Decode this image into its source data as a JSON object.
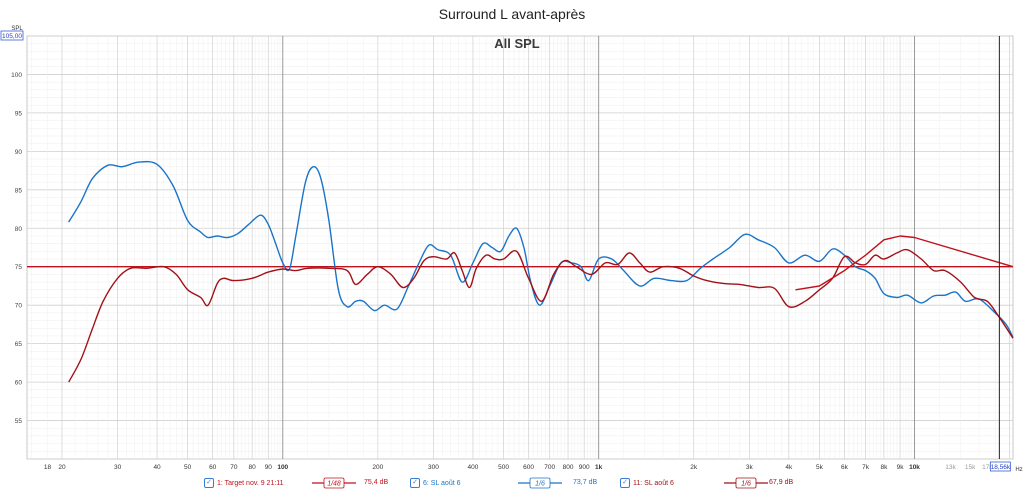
{
  "chart_data": {
    "type": "line",
    "title": "Surround L avant-après",
    "subtitle": "All SPL",
    "ylabel": "SPL",
    "xlabel": "Hz",
    "x_scale": "log",
    "xlim": [
      15.5,
      20500
    ],
    "ylim": [
      50,
      105
    ],
    "y_ticks": [
      55,
      60,
      65,
      70,
      75,
      80,
      85,
      90,
      95,
      100
    ],
    "y_top_label": "105,00",
    "x_ticks": [
      {
        "v": 18,
        "label": "18"
      },
      {
        "v": 20,
        "label": "20"
      },
      {
        "v": 30,
        "label": "30"
      },
      {
        "v": 40,
        "label": "40"
      },
      {
        "v": 50,
        "label": "50"
      },
      {
        "v": 60,
        "label": "60"
      },
      {
        "v": 70,
        "label": "70"
      },
      {
        "v": 80,
        "label": "80"
      },
      {
        "v": 90,
        "label": "90"
      },
      {
        "v": 100,
        "label": "100"
      },
      {
        "v": 200,
        "label": "200"
      },
      {
        "v": 300,
        "label": "300"
      },
      {
        "v": 400,
        "label": "400"
      },
      {
        "v": 500,
        "label": "500"
      },
      {
        "v": 600,
        "label": "600"
      },
      {
        "v": 700,
        "label": "700"
      },
      {
        "v": 800,
        "label": "800"
      },
      {
        "v": 900,
        "label": "900"
      },
      {
        "v": 1000,
        "label": "1k"
      },
      {
        "v": 2000,
        "label": "2k"
      },
      {
        "v": 3000,
        "label": "3k"
      },
      {
        "v": 4000,
        "label": "4k"
      },
      {
        "v": 5000,
        "label": "5k"
      },
      {
        "v": 6000,
        "label": "6k"
      },
      {
        "v": 7000,
        "label": "7k"
      },
      {
        "v": 8000,
        "label": "8k"
      },
      {
        "v": 9000,
        "label": "9k"
      },
      {
        "v": 10000,
        "label": "10k"
      },
      {
        "v": 13000,
        "label": "13k"
      },
      {
        "v": 15000,
        "label": "15k"
      },
      {
        "v": 17000,
        "label": "17k"
      }
    ],
    "cursor_label": "18,56k",
    "cursor_x": 18560,
    "grid": true,
    "legend_position": "bottom",
    "series": [
      {
        "name": "1: Target nov. 9 21:11",
        "color": "#c0121c",
        "smoothing": "1/48",
        "value_label": "75,4 dB",
        "points": [
          [
            15.5,
            75
          ],
          [
            10000,
            75
          ],
          [
            20500,
            75
          ]
        ]
      },
      {
        "name": "6: SL août 6",
        "color": "#1a74c9",
        "smoothing": "1/6",
        "value_label": "73,7 dB",
        "points": [
          [
            21,
            80.8
          ],
          [
            23,
            83.5
          ],
          [
            25,
            86.5
          ],
          [
            28,
            88.2
          ],
          [
            31,
            88
          ],
          [
            35,
            88.6
          ],
          [
            40,
            88.3
          ],
          [
            45,
            85.5
          ],
          [
            50,
            81
          ],
          [
            55,
            79.5
          ],
          [
            58,
            78.8
          ],
          [
            62,
            79
          ],
          [
            67,
            78.8
          ],
          [
            72,
            79.3
          ],
          [
            78,
            80.5
          ],
          [
            85,
            81.7
          ],
          [
            90,
            80.5
          ],
          [
            95,
            78
          ],
          [
            100,
            75.5
          ],
          [
            105,
            74.7
          ],
          [
            110,
            79
          ],
          [
            118,
            86
          ],
          [
            125,
            88
          ],
          [
            132,
            86.5
          ],
          [
            140,
            81
          ],
          [
            150,
            72
          ],
          [
            160,
            69.8
          ],
          [
            170,
            70.5
          ],
          [
            180,
            70.5
          ],
          [
            195,
            69.3
          ],
          [
            210,
            70
          ],
          [
            230,
            69.5
          ],
          [
            250,
            72.5
          ],
          [
            270,
            75.5
          ],
          [
            290,
            77.8
          ],
          [
            310,
            77.2
          ],
          [
            340,
            76.5
          ],
          [
            370,
            73
          ],
          [
            400,
            75.5
          ],
          [
            430,
            78
          ],
          [
            460,
            77.5
          ],
          [
            490,
            77
          ],
          [
            520,
            79
          ],
          [
            550,
            80
          ],
          [
            580,
            77.5
          ],
          [
            610,
            73
          ],
          [
            650,
            70
          ],
          [
            700,
            72.5
          ],
          [
            760,
            75.5
          ],
          [
            820,
            75.5
          ],
          [
            880,
            75
          ],
          [
            930,
            73.2
          ],
          [
            1000,
            76
          ],
          [
            1100,
            76
          ],
          [
            1200,
            74.5
          ],
          [
            1350,
            72.5
          ],
          [
            1500,
            73.5
          ],
          [
            1700,
            73.2
          ],
          [
            1900,
            73.2
          ],
          [
            2100,
            74.8
          ],
          [
            2300,
            76
          ],
          [
            2600,
            77.5
          ],
          [
            2900,
            79.2
          ],
          [
            3200,
            78.5
          ],
          [
            3600,
            77.5
          ],
          [
            4000,
            75.5
          ],
          [
            4500,
            76.5
          ],
          [
            5000,
            75.7
          ],
          [
            5500,
            77.3
          ],
          [
            6000,
            76.5
          ],
          [
            6500,
            75
          ],
          [
            7000,
            74.5
          ],
          [
            7500,
            73.5
          ],
          [
            8000,
            71.5
          ],
          [
            8800,
            71
          ],
          [
            9500,
            71.3
          ],
          [
            10500,
            70.3
          ],
          [
            11500,
            71.2
          ],
          [
            12500,
            71.3
          ],
          [
            13500,
            71.7
          ],
          [
            14500,
            70.5
          ],
          [
            16000,
            70.8
          ],
          [
            18000,
            69
          ],
          [
            19500,
            67.5
          ],
          [
            20500,
            65.8
          ]
        ]
      },
      {
        "name": "11: SL août 6",
        "color": "#a11218",
        "smoothing": "1/6",
        "value_label": "67,9 dB",
        "points": [
          [
            21,
            60
          ],
          [
            23,
            63
          ],
          [
            25,
            67
          ],
          [
            27,
            70.5
          ],
          [
            30,
            73.5
          ],
          [
            33,
            74.8
          ],
          [
            37,
            74.8
          ],
          [
            42,
            75
          ],
          [
            46,
            74
          ],
          [
            50,
            72
          ],
          [
            55,
            71
          ],
          [
            58,
            70
          ],
          [
            62,
            72.8
          ],
          [
            65,
            73.5
          ],
          [
            70,
            73.2
          ],
          [
            80,
            73.5
          ],
          [
            90,
            74.3
          ],
          [
            100,
            74.7
          ],
          [
            110,
            74.5
          ],
          [
            120,
            74.8
          ],
          [
            140,
            74.8
          ],
          [
            160,
            74.5
          ],
          [
            170,
            72.7
          ],
          [
            185,
            74
          ],
          [
            200,
            75
          ],
          [
            220,
            74
          ],
          [
            240,
            72.3
          ],
          [
            260,
            73.5
          ],
          [
            280,
            75.8
          ],
          [
            300,
            76.3
          ],
          [
            330,
            76
          ],
          [
            350,
            76.8
          ],
          [
            370,
            74.5
          ],
          [
            390,
            72.3
          ],
          [
            410,
            74.8
          ],
          [
            440,
            76.5
          ],
          [
            470,
            76
          ],
          [
            500,
            76
          ],
          [
            550,
            77
          ],
          [
            600,
            73.5
          ],
          [
            660,
            70.5
          ],
          [
            720,
            74
          ],
          [
            780,
            75.8
          ],
          [
            850,
            75
          ],
          [
            950,
            74
          ],
          [
            1050,
            75.5
          ],
          [
            1150,
            75.3
          ],
          [
            1250,
            76.8
          ],
          [
            1350,
            75.5
          ],
          [
            1450,
            74.3
          ],
          [
            1600,
            75
          ],
          [
            1800,
            74.8
          ],
          [
            2000,
            73.8
          ],
          [
            2200,
            73.2
          ],
          [
            2500,
            72.8
          ],
          [
            2800,
            72.7
          ],
          [
            3200,
            72.3
          ],
          [
            3600,
            72.2
          ],
          [
            4000,
            69.8
          ],
          [
            4500,
            70.5
          ],
          [
            5000,
            72
          ],
          [
            5500,
            73.5
          ],
          [
            6000,
            76.3
          ],
          [
            6500,
            75.5
          ],
          [
            7000,
            75.3
          ],
          [
            7500,
            76.5
          ],
          [
            8000,
            76
          ],
          [
            8800,
            76.8
          ],
          [
            9500,
            77.2
          ],
          [
            10500,
            76
          ],
          [
            11500,
            74.5
          ],
          [
            12500,
            74.5
          ],
          [
            14000,
            73
          ],
          [
            15500,
            71
          ],
          [
            17000,
            70.5
          ],
          [
            18500,
            68.5
          ],
          [
            20500,
            65.7
          ]
        ]
      },
      {
        "name": "",
        "color": "#c0121c",
        "smoothing": "",
        "value_label": "",
        "points": [
          [
            4200,
            72
          ],
          [
            5000,
            72.5
          ],
          [
            6000,
            74.5
          ],
          [
            7000,
            76.5
          ],
          [
            8000,
            78.5
          ],
          [
            9000,
            79
          ],
          [
            10000,
            78.8
          ],
          [
            20500,
            75
          ]
        ]
      }
    ]
  }
}
